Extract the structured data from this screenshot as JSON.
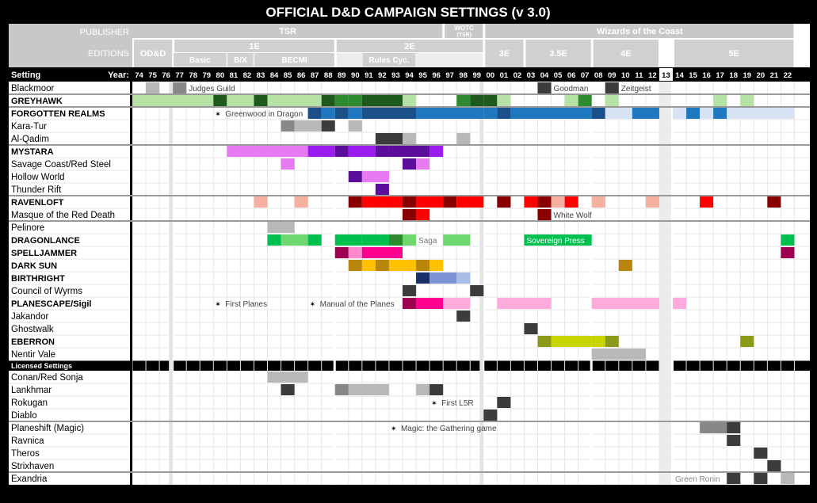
{
  "title": "OFFICIAL D&D CAMPAIGN SETTINGS (v 3.0)",
  "header": {
    "publisher_label": "PUBLISHER",
    "editions_label": "EDITIONS",
    "setting_label": "Setting",
    "year_label": "Year:",
    "publishers": [
      {
        "name": "TSR",
        "start": 74,
        "end": 96
      },
      {
        "name": "WOTC (TSR)",
        "start": 97,
        "end": 99
      },
      {
        "name": "Wizards of the Coast",
        "start": 100,
        "end": 122
      }
    ],
    "editions": [
      {
        "name": "OD&D",
        "start": 74,
        "end": 76
      },
      {
        "name": "1E",
        "start": 77,
        "end": 88
      },
      {
        "name": "2E",
        "start": 89,
        "end": 99
      },
      {
        "name": "3E",
        "start": 100,
        "end": 102
      },
      {
        "name": "3.5E",
        "start": 103,
        "end": 107
      },
      {
        "name": "4E",
        "start": 108,
        "end": 112
      },
      {
        "name": "5E",
        "start": 114,
        "end": 122
      }
    ],
    "sub_editions": [
      {
        "name": "Basic",
        "start": 77,
        "end": 80
      },
      {
        "name": "B/X",
        "start": 81,
        "end": 82
      },
      {
        "name": "BECMI",
        "start": 83,
        "end": 88
      },
      {
        "name": "Rules Cyc.",
        "start": 91,
        "end": 94
      }
    ],
    "years": [
      "74",
      "75",
      "76",
      "77",
      "78",
      "79",
      "80",
      "81",
      "82",
      "83",
      "84",
      "85",
      "86",
      "87",
      "88",
      "89",
      "90",
      "91",
      "92",
      "93",
      "94",
      "95",
      "96",
      "97",
      "98",
      "99",
      "00",
      "01",
      "02",
      "03",
      "04",
      "05",
      "06",
      "07",
      "08",
      "09",
      "10",
      "11",
      "12",
      "13",
      "14",
      "15",
      "16",
      "17",
      "18",
      "19",
      "20",
      "21",
      "22"
    ],
    "highlight_year": "13"
  },
  "licensed_label": "Licensed Settings",
  "colors": {
    "gray": "#b8b8b8",
    "dark": "#3c3c3c",
    "midgray": "#888888",
    "green_light": "#b6e3a5",
    "green_dark": "#1e5a1e",
    "green_mid": "#2e8a2e",
    "blue": "#1f77c0",
    "blue_dark": "#1a4f8a",
    "blue_light": "#d8e2f5",
    "purple": "#9b1bf0",
    "purple_light": "#e77af0",
    "purple_dark": "#5c0d99",
    "red": "#ff0000",
    "red_dark": "#8a0000",
    "salmon": "#f5b0a0",
    "dl_green": "#00c050",
    "dl_light": "#6ed86e",
    "sj_magenta": "#ff0090",
    "sj_pink": "#ff88cc",
    "sj_dark": "#a00050",
    "ds_gold": "#b8860b",
    "ds_yellow": "#ffc000",
    "ds_orange": "#e0a000",
    "br_navy": "#1a2f6a",
    "br_blue": "#7b93d4",
    "br_light": "#a8bce8",
    "ps_pink": "#ffaadd",
    "eb_olive": "#8c9a1a",
    "eb_yellow": "#c8d400"
  },
  "chart_data": {
    "type": "table",
    "title": "OFFICIAL D&D CAMPAIGN SETTINGS (v 3.0)",
    "rows": [
      {
        "name": "Blackmoor",
        "bold": false,
        "spans": [
          [
            75,
            75,
            "gray"
          ],
          [
            77,
            77,
            "midgray"
          ],
          [
            104,
            104,
            "dark"
          ],
          [
            109,
            109,
            "dark"
          ]
        ]
      },
      {
        "name": "GREYHAWK",
        "bold": true,
        "spans": [
          [
            74,
            79,
            "green_light"
          ],
          [
            80,
            80,
            "green_dark"
          ],
          [
            81,
            82,
            "green_light"
          ],
          [
            83,
            83,
            "green_dark"
          ],
          [
            84,
            87,
            "green_light"
          ],
          [
            88,
            88,
            "green_dark"
          ],
          [
            89,
            89,
            "green_mid"
          ],
          [
            90,
            90,
            "green_mid"
          ],
          [
            91,
            93,
            "green_dark"
          ],
          [
            94,
            94,
            "green_light"
          ],
          [
            98,
            98,
            "green_mid"
          ],
          [
            99,
            99,
            "green_dark"
          ],
          [
            100,
            100,
            "green_dark"
          ],
          [
            101,
            101,
            "green_light"
          ],
          [
            106,
            106,
            "green_light"
          ],
          [
            107,
            107,
            "green_mid"
          ],
          [
            109,
            109,
            "green_light"
          ],
          [
            117,
            117,
            "green_light"
          ],
          [
            119,
            119,
            "green_light"
          ]
        ]
      },
      {
        "name": "FORGOTTEN REALMS",
        "bold": true,
        "spans": [
          [
            87,
            87,
            "blue_dark"
          ],
          [
            88,
            88,
            "blue"
          ],
          [
            89,
            89,
            "blue_dark"
          ],
          [
            90,
            90,
            "blue"
          ],
          [
            91,
            94,
            "blue_dark"
          ],
          [
            95,
            99,
            "blue"
          ],
          [
            100,
            100,
            "blue"
          ],
          [
            101,
            101,
            "blue_dark"
          ],
          [
            102,
            107,
            "blue"
          ],
          [
            108,
            108,
            "blue_dark"
          ],
          [
            109,
            110,
            "blue_light"
          ],
          [
            111,
            112,
            "blue"
          ],
          [
            114,
            114,
            "blue_light"
          ],
          [
            115,
            115,
            "blue"
          ],
          [
            116,
            116,
            "blue_light"
          ],
          [
            117,
            117,
            "blue"
          ],
          [
            118,
            122,
            "blue_light"
          ]
        ]
      },
      {
        "name": "Kara-Tur",
        "bold": false,
        "spans": [
          [
            85,
            85,
            "midgray"
          ],
          [
            86,
            87,
            "gray"
          ],
          [
            88,
            88,
            "dark"
          ],
          [
            90,
            90,
            "gray"
          ]
        ]
      },
      {
        "name": "Al-Qadim",
        "bold": false,
        "spans": [
          [
            92,
            93,
            "dark"
          ],
          [
            94,
            94,
            "gray"
          ],
          [
            98,
            98,
            "gray"
          ]
        ]
      },
      {
        "name": "MYSTARA",
        "bold": true,
        "spans": [
          [
            81,
            86,
            "purple_light"
          ],
          [
            87,
            88,
            "purple"
          ],
          [
            89,
            89,
            "purple_dark"
          ],
          [
            90,
            91,
            "purple"
          ],
          [
            92,
            92,
            "purple_dark"
          ],
          [
            93,
            95,
            "purple_dark"
          ],
          [
            96,
            96,
            "purple"
          ]
        ]
      },
      {
        "name": "Savage Coast/Red Steel",
        "bold": false,
        "spans": [
          [
            85,
            85,
            "purple_light"
          ],
          [
            94,
            94,
            "purple_dark"
          ],
          [
            95,
            95,
            "purple_light"
          ]
        ]
      },
      {
        "name": "Hollow World",
        "bold": false,
        "spans": [
          [
            90,
            90,
            "purple_dark"
          ],
          [
            91,
            92,
            "purple_light"
          ]
        ]
      },
      {
        "name": "Thunder Rift",
        "bold": false,
        "spans": [
          [
            92,
            92,
            "purple_dark"
          ]
        ]
      },
      {
        "name": "RAVENLOFT",
        "bold": true,
        "spans": [
          [
            83,
            83,
            "salmon"
          ],
          [
            86,
            86,
            "salmon"
          ],
          [
            90,
            90,
            "red_dark"
          ],
          [
            91,
            93,
            "red"
          ],
          [
            94,
            94,
            "red_dark"
          ],
          [
            95,
            96,
            "red"
          ],
          [
            97,
            97,
            "red_dark"
          ],
          [
            98,
            99,
            "red"
          ],
          [
            101,
            101,
            "red_dark"
          ],
          [
            103,
            103,
            "red"
          ],
          [
            104,
            104,
            "red_dark"
          ],
          [
            105,
            105,
            "salmon"
          ],
          [
            106,
            106,
            "red"
          ],
          [
            108,
            108,
            "salmon"
          ],
          [
            112,
            112,
            "salmon"
          ],
          [
            116,
            116,
            "red"
          ],
          [
            121,
            121,
            "red_dark"
          ]
        ]
      },
      {
        "name": "Masque of the Red Death",
        "bold": false,
        "spans": [
          [
            94,
            94,
            "red_dark"
          ],
          [
            95,
            95,
            "red"
          ],
          [
            104,
            104,
            "red_dark"
          ]
        ]
      },
      {
        "name": "Pelinore",
        "bold": false,
        "spans": [
          [
            84,
            85,
            "gray"
          ]
        ]
      },
      {
        "name": "DRAGONLANCE",
        "bold": true,
        "spans": [
          [
            84,
            84,
            "dl_green"
          ],
          [
            85,
            86,
            "dl_light"
          ],
          [
            87,
            87,
            "dl_green"
          ],
          [
            89,
            90,
            "dl_green"
          ],
          [
            91,
            92,
            "dl_green"
          ],
          [
            93,
            93,
            "green_mid"
          ],
          [
            94,
            94,
            "dl_light"
          ],
          [
            97,
            98,
            "dl_light"
          ],
          [
            103,
            107,
            "dl_green"
          ],
          [
            122,
            122,
            "dl_green"
          ]
        ]
      },
      {
        "name": "SPELLJAMMER",
        "bold": true,
        "spans": [
          [
            89,
            89,
            "sj_dark"
          ],
          [
            90,
            90,
            "sj_pink"
          ],
          [
            91,
            93,
            "sj_magenta"
          ],
          [
            122,
            122,
            "sj_dark"
          ]
        ]
      },
      {
        "name": "DARK SUN",
        "bold": true,
        "spans": [
          [
            90,
            90,
            "ds_gold"
          ],
          [
            91,
            91,
            "ds_yellow"
          ],
          [
            92,
            92,
            "ds_gold"
          ],
          [
            93,
            94,
            "ds_yellow"
          ],
          [
            95,
            95,
            "ds_gold"
          ],
          [
            96,
            96,
            "ds_yellow"
          ],
          [
            110,
            110,
            "ds_gold"
          ]
        ]
      },
      {
        "name": "BIRTHRIGHT",
        "bold": true,
        "spans": [
          [
            95,
            95,
            "br_navy"
          ],
          [
            96,
            97,
            "br_blue"
          ],
          [
            98,
            98,
            "br_light"
          ]
        ]
      },
      {
        "name": "Council of Wyrms",
        "bold": false,
        "spans": [
          [
            94,
            94,
            "dark"
          ],
          [
            99,
            99,
            "dark"
          ]
        ]
      },
      {
        "name": "PLANESCAPE/Sigil",
        "bold": true,
        "spans": [
          [
            94,
            94,
            "sj_dark"
          ],
          [
            95,
            96,
            "sj_magenta"
          ],
          [
            97,
            98,
            "ps_pink"
          ],
          [
            101,
            104,
            "ps_pink"
          ],
          [
            108,
            112,
            "ps_pink"
          ],
          [
            114,
            114,
            "ps_pink"
          ]
        ]
      },
      {
        "name": "Jakandor",
        "bold": false,
        "spans": [
          [
            98,
            98,
            "dark"
          ]
        ]
      },
      {
        "name": "Ghostwalk",
        "bold": false,
        "spans": [
          [
            103,
            103,
            "dark"
          ]
        ]
      },
      {
        "name": "EBERRON",
        "bold": true,
        "spans": [
          [
            104,
            104,
            "eb_olive"
          ],
          [
            105,
            107,
            "eb_yellow"
          ],
          [
            108,
            108,
            "eb_yellow"
          ],
          [
            109,
            109,
            "eb_olive"
          ],
          [
            119,
            119,
            "eb_olive"
          ]
        ]
      },
      {
        "name": "Nentir Vale",
        "bold": false,
        "spans": [
          [
            108,
            111,
            "gray"
          ]
        ]
      },
      {
        "name": "Conan/Red Sonja",
        "bold": false,
        "licensed": true,
        "spans": [
          [
            84,
            86,
            "gray"
          ]
        ]
      },
      {
        "name": "Lankhmar",
        "bold": false,
        "licensed": true,
        "spans": [
          [
            85,
            85,
            "dark"
          ],
          [
            89,
            89,
            "midgray"
          ],
          [
            90,
            92,
            "gray"
          ],
          [
            95,
            95,
            "gray"
          ],
          [
            96,
            96,
            "dark"
          ]
        ]
      },
      {
        "name": "Rokugan",
        "bold": false,
        "licensed": true,
        "spans": [
          [
            101,
            101,
            "dark"
          ]
        ]
      },
      {
        "name": "Diablo",
        "bold": false,
        "licensed": true,
        "spans": [
          [
            100,
            100,
            "dark"
          ]
        ]
      },
      {
        "name": "Planeshift (Magic)",
        "bold": false,
        "licensed": true,
        "spans": [
          [
            116,
            117,
            "midgray"
          ],
          [
            118,
            118,
            "dark"
          ]
        ]
      },
      {
        "name": "Ravnica",
        "bold": false,
        "licensed": true,
        "spans": [
          [
            118,
            118,
            "dark"
          ]
        ]
      },
      {
        "name": "Theros",
        "bold": false,
        "licensed": true,
        "spans": [
          [
            120,
            120,
            "dark"
          ]
        ]
      },
      {
        "name": "Strixhaven",
        "bold": false,
        "licensed": true,
        "spans": [
          [
            121,
            121,
            "dark"
          ]
        ]
      },
      {
        "name": "Exandria",
        "bold": false,
        "licensed": true,
        "spans": [
          [
            118,
            118,
            "dark"
          ],
          [
            120,
            120,
            "dark"
          ],
          [
            122,
            122,
            "gray"
          ]
        ]
      }
    ],
    "annotations": [
      {
        "row": "Blackmoor",
        "year": 78,
        "text": "Judges Guild",
        "star": false,
        "color": "#444"
      },
      {
        "row": "Blackmoor",
        "year": 105,
        "text": "Goodman",
        "star": false,
        "color": "#444"
      },
      {
        "row": "Blackmoor",
        "year": 110,
        "text": "Zeitgeist",
        "star": false,
        "color": "#444"
      },
      {
        "row": "FORGOTTEN REALMS",
        "year": 80,
        "text": "Greenwood in Dragon",
        "star": true,
        "color": "#444"
      },
      {
        "row": "Masque of the Red Death",
        "year": 105,
        "text": "White Wolf",
        "star": false,
        "color": "#444"
      },
      {
        "row": "DRAGONLANCE",
        "year": 95,
        "text": "Saga",
        "star": false,
        "color": "#777"
      },
      {
        "row": "DRAGONLANCE",
        "year": 103,
        "text": "Sovereign Press",
        "star": false,
        "color": "#ffffff"
      },
      {
        "row": "PLANESCAPE/Sigil",
        "year": 80,
        "text": "First Planes",
        "star": true,
        "color": "#444"
      },
      {
        "row": "PLANESCAPE/Sigil",
        "year": 87,
        "text": "Manual of the Planes",
        "star": true,
        "color": "#444"
      },
      {
        "row": "Rokugan",
        "year": 96,
        "text": "First L5R",
        "star": true,
        "color": "#444"
      },
      {
        "row": "Planeshift (Magic)",
        "year": 93,
        "text": "Magic: the Gathering game",
        "star": true,
        "color": "#444"
      },
      {
        "row": "Exandria",
        "year": 114,
        "text": "Green Ronin",
        "star": false,
        "color": "#888"
      }
    ],
    "group_separators": [
      "Kara-Tur",
      "Savage Coast/Red Steel",
      "Masque of the Red Death",
      "Pelinore",
      "Conan/Red Sonja",
      "Ravnica",
      "Exandria"
    ]
  }
}
